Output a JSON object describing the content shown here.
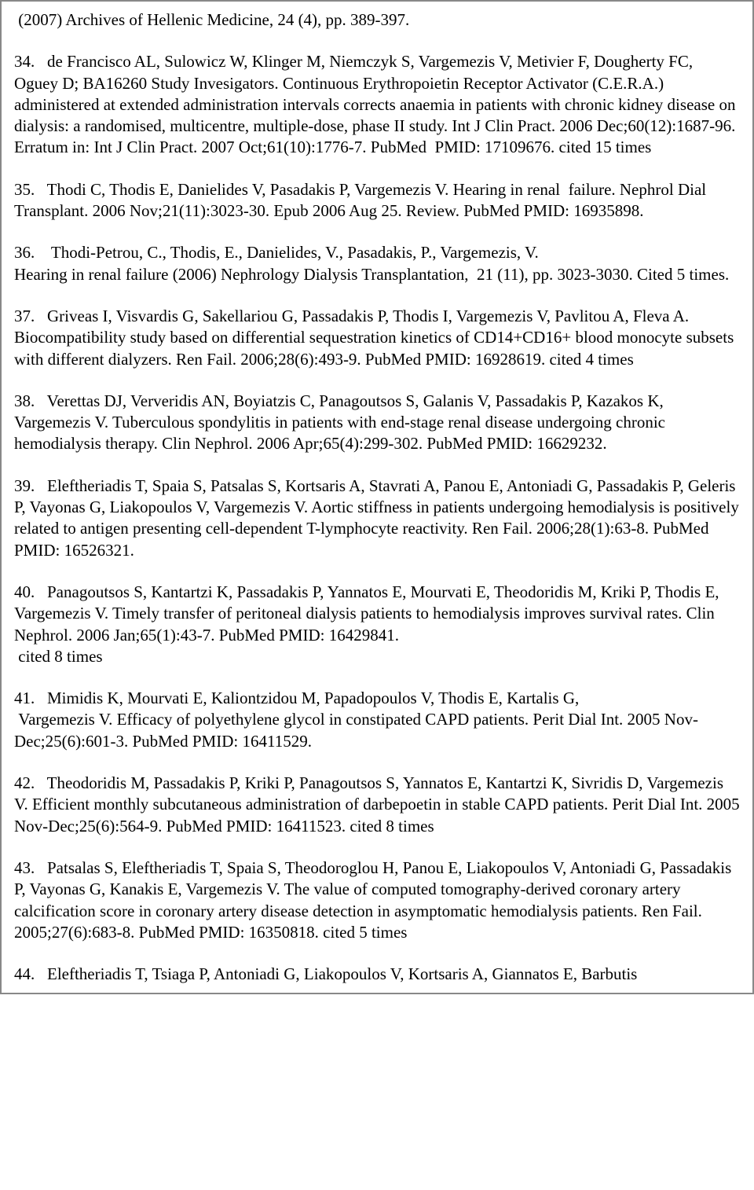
{
  "page": {
    "font_family": "Times New Roman",
    "font_size_pt": 16,
    "text_color": "#000000",
    "background_color": "#ffffff",
    "border_color": "#888888"
  },
  "references": [
    {
      "text": " (2007) Archives of Hellenic Medicine, 24 (4), pp. 389-397."
    },
    {
      "text": "34.   de Francisco AL, Sulowicz W, Klinger M, Niemczyk S, Vargemezis V, Metivier F, Dougherty FC, Oguey D; BA16260 Study Invesigators. Continuous Erythropoietin Receptor Activator (C.E.R.A.) administered at extended administration intervals corrects anaemia in patients with chronic kidney disease on dialysis: a randomised, multicentre, multiple-dose, phase II study. Int J Clin Pract. 2006 Dec;60(12):1687-96. Erratum in: Int J Clin Pract. 2007 Oct;61(10):1776-7. PubMed  PMID: 17109676. cited 15 times"
    },
    {
      "text": "35.   Thodi C, Thodis E, Danielides V, Pasadakis P, Vargemezis V. Hearing in renal  failure. Nephrol Dial Transplant. 2006 Nov;21(11):3023-30. Epub 2006 Aug 25. Review. PubMed PMID: 16935898."
    },
    {
      "text": "36.    Thodi-Petrou, C., Thodis, E., Danielides, V., Pasadakis, P., Vargemezis, V.\nHearing in renal failure (2006) Nephrology Dialysis Transplantation,  21 (11), pp. 3023-3030. Cited 5 times."
    },
    {
      "text": "37.   Griveas I, Visvardis G, Sakellariou G, Passadakis P, Thodis I, Vargemezis V, Pavlitou A, Fleva A. Biocompatibility study based on differential sequestration kinetics of CD14+CD16+ blood monocyte subsets with different dialyzers. Ren Fail. 2006;28(6):493-9. PubMed PMID: 16928619. cited 4 times"
    },
    {
      "text": "38.   Verettas DJ, Ververidis AN, Boyiatzis C, Panagoutsos S, Galanis V, Passadakis P, Kazakos K, Vargemezis V. Tuberculous spondylitis in patients with end-stage renal disease undergoing chronic hemodialysis therapy. Clin Nephrol. 2006 Apr;65(4):299-302. PubMed PMID: 16629232."
    },
    {
      "text": "39.   Eleftheriadis T, Spaia S, Patsalas S, Kortsaris A, Stavrati A, Panou E, Antoniadi G, Passadakis P, Geleris P, Vayonas G, Liakopoulos V, Vargemezis V. Aortic stiffness in patients undergoing hemodialysis is positively related to antigen presenting cell-dependent T-lymphocyte reactivity. Ren Fail. 2006;28(1):63-8. PubMed PMID: 16526321."
    },
    {
      "text": "40.   Panagoutsos S, Kantartzi K, Passadakis P, Yannatos E, Mourvati E, Theodoridis M, Kriki P, Thodis E, Vargemezis V. Timely transfer of peritoneal dialysis patients to hemodialysis improves survival rates. Clin Nephrol. 2006 Jan;65(1):43-7. PubMed PMID: 16429841.\n cited 8 times"
    },
    {
      "text": "41.   Mimidis K, Mourvati E, Kaliontzidou M, Papadopoulos V, Thodis E, Kartalis G,\n Vargemezis V. Efficacy of polyethylene glycol in constipated CAPD patients. Perit Dial Int. 2005 Nov-Dec;25(6):601-3. PubMed PMID: 16411529."
    },
    {
      "text": "42.   Theodoridis M, Passadakis P, Kriki P, Panagoutsos S, Yannatos E, Kantartzi K, Sivridis D, Vargemezis V. Efficient monthly subcutaneous administration of darbepoetin in stable CAPD patients. Perit Dial Int. 2005 Nov-Dec;25(6):564-9. PubMed PMID: 16411523. cited 8 times"
    },
    {
      "text": "43.   Patsalas S, Eleftheriadis T, Spaia S, Theodoroglou H, Panou E, Liakopoulos V, Antoniadi G, Passadakis P, Vayonas G, Kanakis E, Vargemezis V. The value of computed tomography-derived coronary artery calcification score in coronary artery disease detection in asymptomatic hemodialysis patients. Ren Fail. 2005;27(6):683-8. PubMed PMID: 16350818. cited 5 times"
    },
    {
      "text": "44.   Eleftheriadis T, Tsiaga P, Antoniadi G, Liakopoulos V, Kortsaris A, Giannatos E, Barbutis"
    }
  ]
}
